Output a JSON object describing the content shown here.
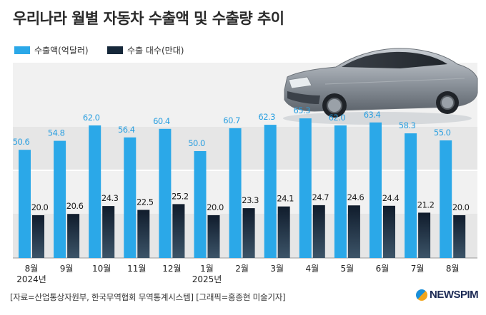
{
  "title": "우리나라 월별 자동차 수출액 및 수출량 추이",
  "legend": [
    {
      "label": "수출액(억달러)",
      "color": "#2ba8e8"
    },
    {
      "label": "수출 대수(만대)",
      "color": "#16283a"
    }
  ],
  "source": "[자료=산업통상자원부, 한국무역협회 무역통계시스템] [그래픽=홍종현 미술기자]",
  "logo": "NEWSPIM",
  "chart_data": {
    "type": "bar",
    "categories": [
      {
        "month": "8월",
        "year": "2024년"
      },
      {
        "month": "9월",
        "year": ""
      },
      {
        "month": "10월",
        "year": ""
      },
      {
        "month": "11월",
        "year": ""
      },
      {
        "month": "12월",
        "year": ""
      },
      {
        "month": "1월",
        "year": "2025년"
      },
      {
        "month": "2월",
        "year": ""
      },
      {
        "month": "3월",
        "year": ""
      },
      {
        "month": "4월",
        "year": ""
      },
      {
        "month": "5월",
        "year": ""
      },
      {
        "month": "6월",
        "year": ""
      },
      {
        "month": "7월",
        "year": ""
      },
      {
        "month": "8월",
        "year": ""
      }
    ],
    "series": [
      {
        "name": "수출액(억달러)",
        "color": "#2ba8e8",
        "values": [
          50.6,
          54.8,
          62.0,
          56.4,
          60.4,
          50.0,
          60.7,
          62.3,
          65.3,
          62.0,
          63.4,
          58.3,
          55.0
        ]
      },
      {
        "name": "수출 대수(만대)",
        "color": "#16283a",
        "values": [
          20.0,
          20.6,
          24.3,
          22.5,
          25.2,
          20.0,
          23.3,
          24.1,
          24.7,
          24.6,
          24.4,
          21.2,
          20.0
        ]
      }
    ],
    "ylim": [
      0,
      75
    ],
    "grid": "banded"
  }
}
